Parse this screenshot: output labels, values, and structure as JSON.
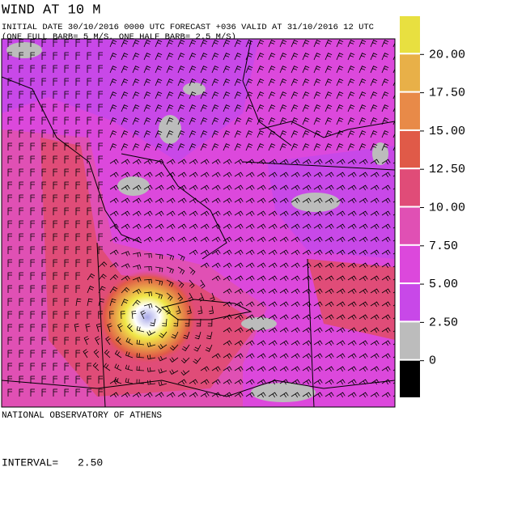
{
  "header": {
    "title": "WIND AT 10 M",
    "subtitle": "INITIAL DATE 30/10/2016  0000 UTC FORECAST +036 VALID AT  31/10/2016  12 UTC",
    "barb_note": "(ONE FULL BARB= 5 M/S, ONE HALF BARB= 2.5 M/S)"
  },
  "legend": {
    "colors": [
      "#000000",
      "#bcbcbc",
      "#c848e8",
      "#dc48dc",
      "#e050b4",
      "#e04c78",
      "#e05a48",
      "#e88a48",
      "#e8b048",
      "#e8e040"
    ],
    "ticks": [
      0,
      {
        "value": 2.5,
        "label": "2.50"
      },
      {
        "value": 5,
        "label": "5.00"
      },
      {
        "value": 7.5,
        "label": "7.50"
      },
      {
        "value": 10,
        "label": "10.00"
      },
      {
        "value": 12.5,
        "label": "12.50"
      },
      {
        "value": 15,
        "label": "15.00"
      },
      {
        "value": 17.5,
        "label": "17.50"
      },
      {
        "value": 20,
        "label": "20.00"
      }
    ]
  },
  "footer": {
    "credit": "NATIONAL OBSERVATORY OF ATHENS",
    "interval_label": "INTERVAL=",
    "interval_value": "2.50"
  }
}
